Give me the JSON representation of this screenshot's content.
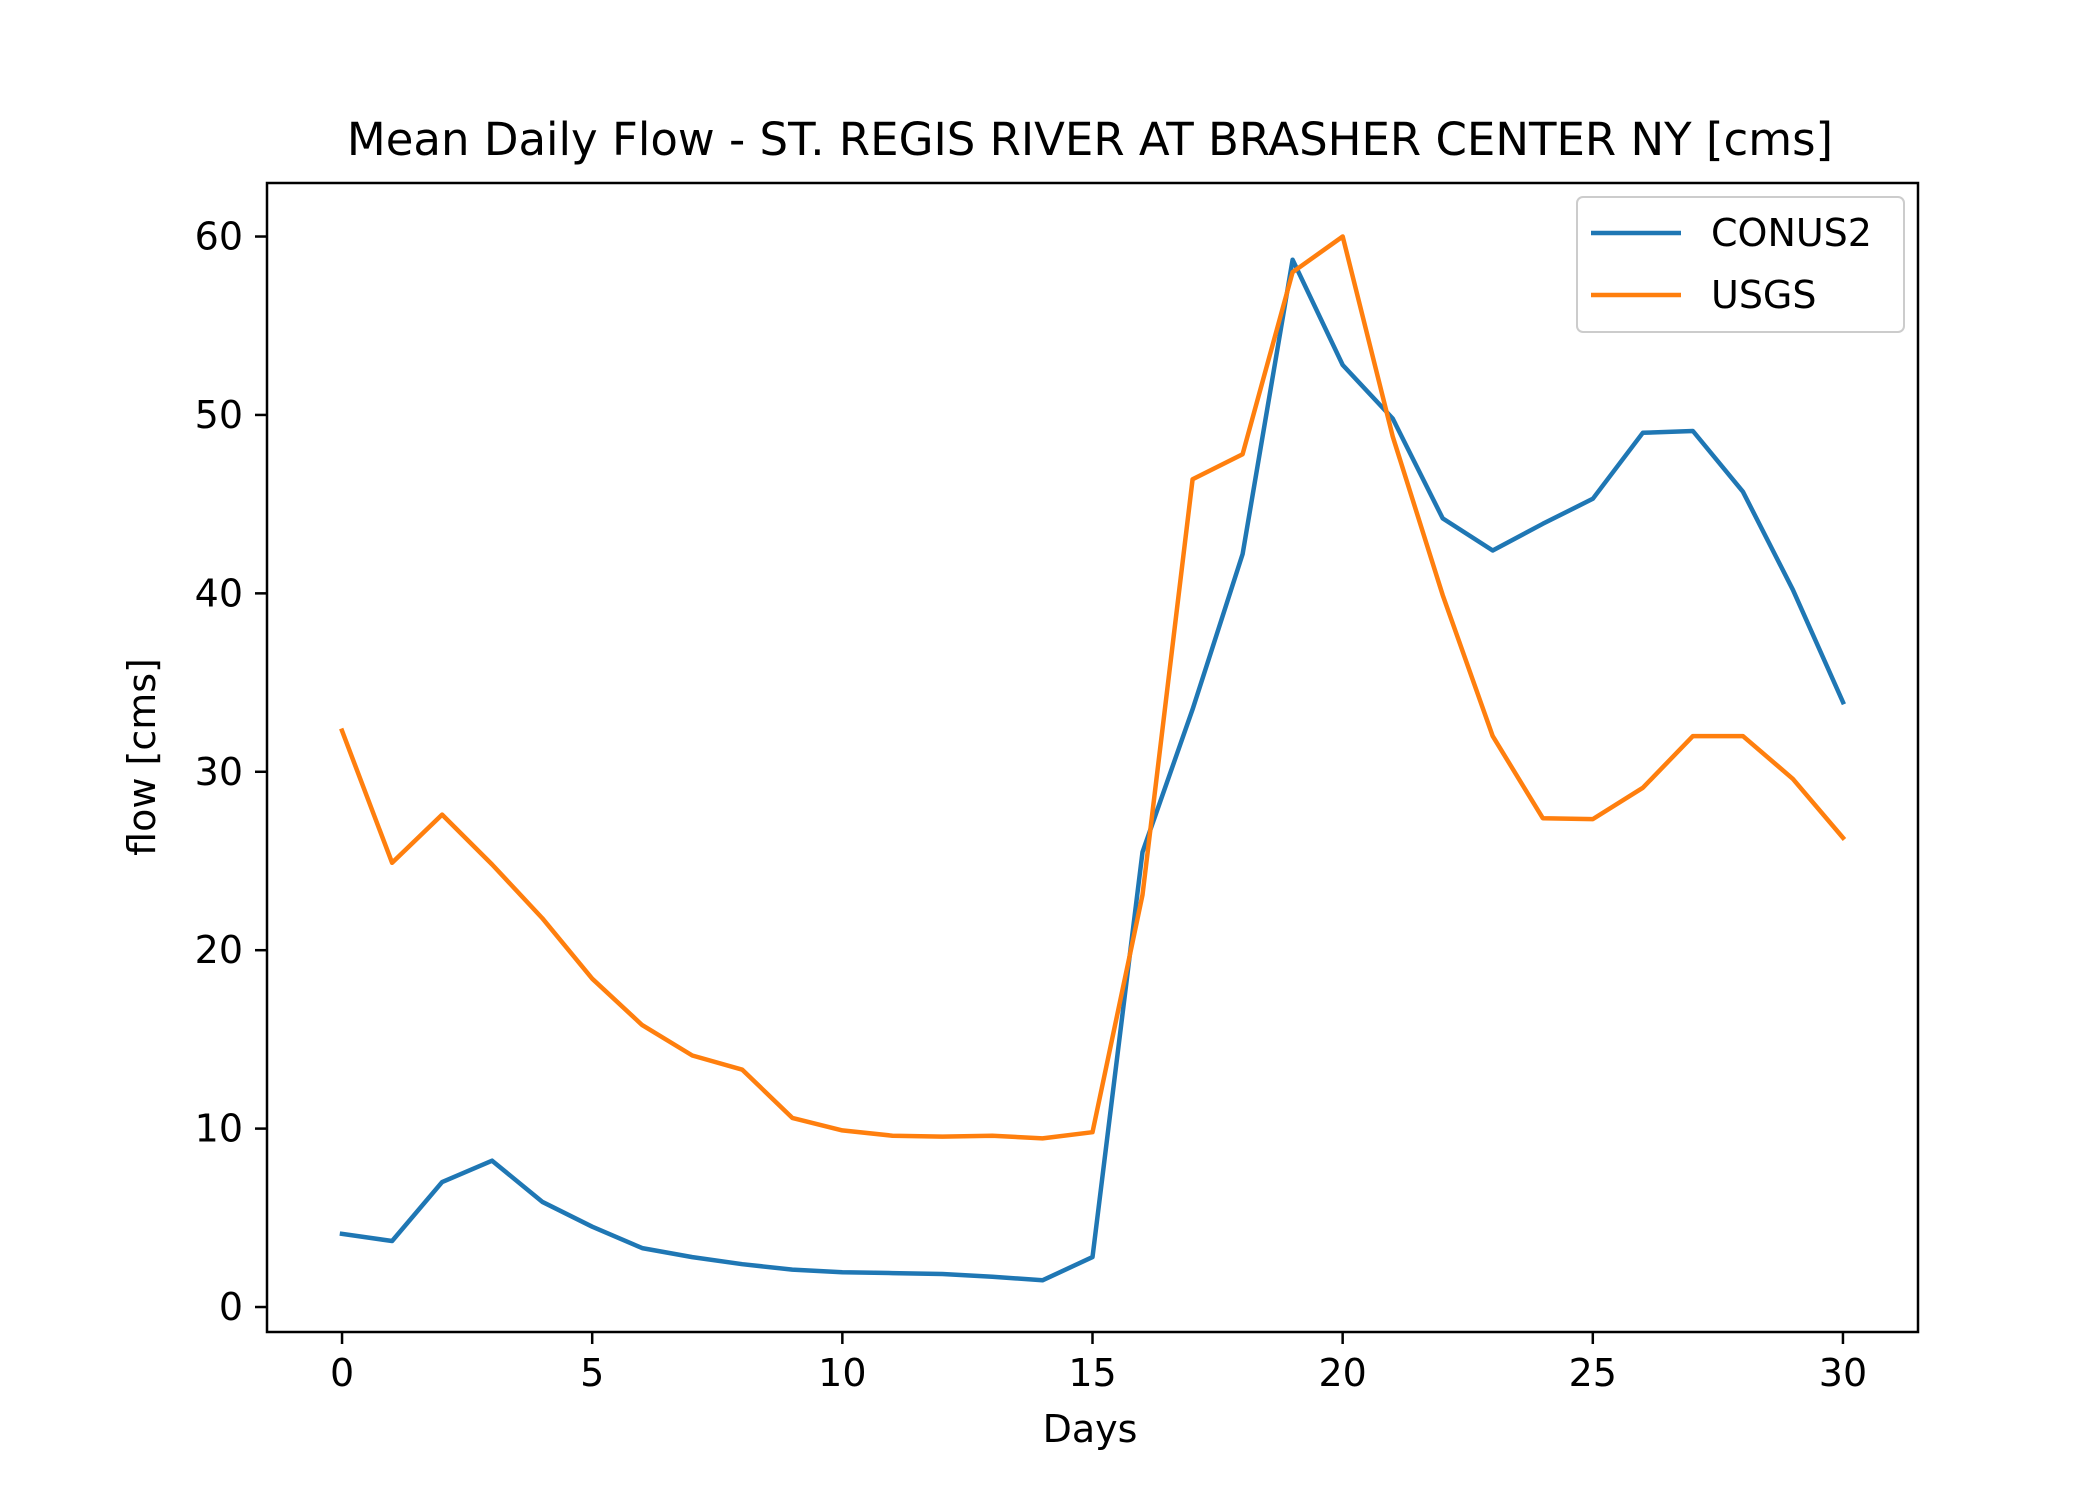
{
  "chart_data": {
    "type": "line",
    "title": "Mean Daily Flow - ST. REGIS RIVER AT BRASHER CENTER NY [cms]",
    "xlabel": "Days",
    "ylabel": "flow [cms]",
    "x": [
      0,
      1,
      2,
      3,
      4,
      5,
      6,
      7,
      8,
      9,
      10,
      11,
      12,
      13,
      14,
      15,
      16,
      17,
      18,
      19,
      20,
      21,
      22,
      23,
      24,
      25,
      26,
      27,
      28,
      29,
      30
    ],
    "xlim": [
      -1.5,
      31.5
    ],
    "ylim": [
      -1.4,
      63
    ],
    "xticks": [
      0,
      5,
      10,
      15,
      20,
      25,
      30
    ],
    "yticks": [
      0,
      10,
      20,
      30,
      40,
      50,
      60
    ],
    "grid": false,
    "legend_position": "upper right",
    "series": [
      {
        "name": "CONUS2",
        "color": "#1f77b4",
        "values": [
          4.1,
          3.7,
          7.0,
          8.2,
          5.9,
          4.5,
          3.3,
          2.8,
          2.4,
          2.1,
          1.95,
          1.9,
          1.85,
          1.7,
          1.5,
          2.8,
          25.5,
          33.5,
          42.2,
          58.7,
          52.8,
          49.8,
          44.2,
          42.4,
          43.9,
          45.3,
          49.0,
          49.1,
          45.7,
          40.2,
          33.9
        ]
      },
      {
        "name": "USGS",
        "color": "#ff7f0e",
        "values": [
          32.3,
          24.9,
          27.6,
          24.8,
          21.8,
          18.4,
          15.8,
          14.1,
          13.3,
          10.6,
          9.9,
          9.6,
          9.55,
          9.6,
          9.45,
          9.8,
          23.1,
          46.4,
          47.8,
          58.0,
          60.0,
          48.8,
          39.9,
          32.0,
          27.4,
          27.35,
          29.1,
          32.0,
          32.0,
          29.6,
          26.3
        ]
      }
    ]
  }
}
